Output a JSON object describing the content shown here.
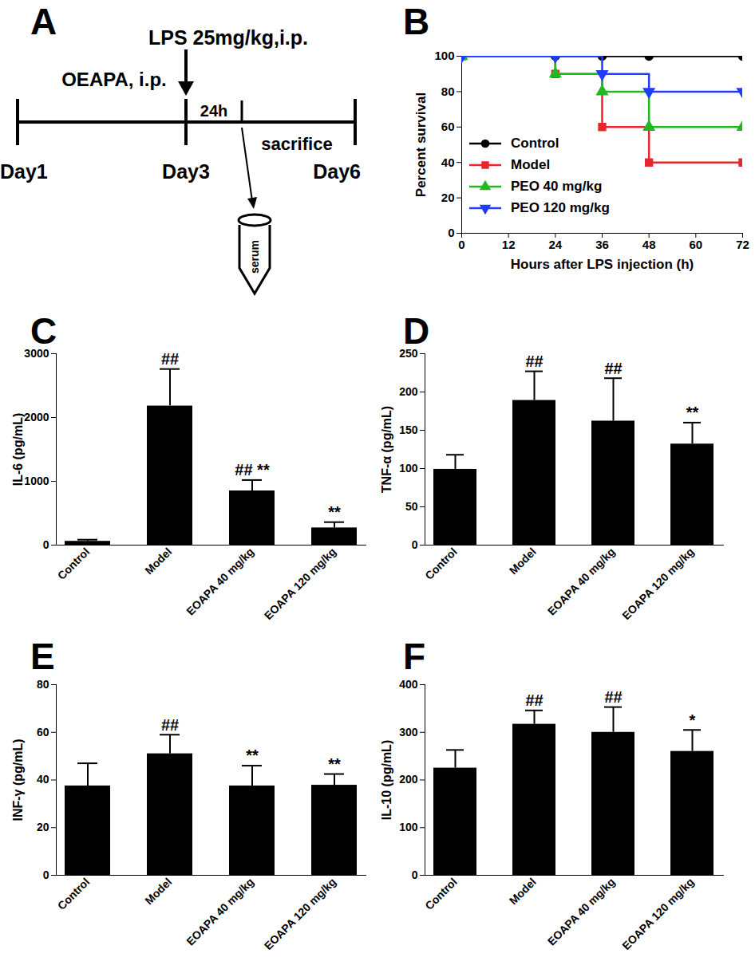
{
  "diagram": {
    "panel": "A",
    "injection": "LPS 25mg/kg,i.p.",
    "pretreatment": "OEAPA, i.p.",
    "interval": "24h",
    "endpoint": "sacrifice",
    "days": [
      "Day1",
      "Day3",
      "Day6"
    ],
    "sample": "serum"
  },
  "chart_data": [
    {
      "panel": "B",
      "type": "line",
      "x_label": "Hours after LPS injection (h)",
      "y_label": "Percent survival",
      "x": [
        0,
        24,
        36,
        48,
        72
      ],
      "xlim": [
        0,
        72
      ],
      "xticks": [
        0,
        12,
        24,
        36,
        48,
        60,
        72
      ],
      "ylim": [
        0,
        100
      ],
      "yticks": [
        0,
        20,
        40,
        60,
        80,
        100
      ],
      "legend": "left",
      "series": [
        {
          "name": "Control",
          "color": "#000000",
          "marker": "circle",
          "values": [
            100,
            100,
            100,
            100,
            100
          ]
        },
        {
          "name": "Model",
          "color": "#e8262b",
          "marker": "square",
          "values": [
            100,
            90,
            60,
            40,
            40
          ]
        },
        {
          "name": "PEO 40 mg/kg",
          "color": "#21b821",
          "marker": "triangle",
          "values": [
            100,
            90,
            80,
            60,
            60
          ]
        },
        {
          "name": "PEO 120 mg/kg",
          "color": "#1f3cff",
          "marker": "triangle-down",
          "values": [
            100,
            100,
            90,
            80,
            80
          ]
        }
      ]
    },
    {
      "panel": "C",
      "type": "bar",
      "y_label": "IL-6 (pg/mL)",
      "color": "#000000",
      "categories": [
        "Control",
        "Model",
        "EOAPA 40 mg/kg",
        "EOAPA 120 mg/kg"
      ],
      "values": [
        60,
        2180,
        850,
        270
      ],
      "errors": [
        25,
        580,
        170,
        90
      ],
      "annotations": [
        null,
        "##",
        "## **",
        "**"
      ],
      "ylim": [
        0,
        3000
      ],
      "yticks": [
        0,
        1000,
        2000,
        3000
      ]
    },
    {
      "panel": "D",
      "type": "bar",
      "y_label": "TNF-α (pg/mL)",
      "color": "#000000",
      "categories": [
        "Control",
        "Model",
        "EOAPA 40 mg/kg",
        "EOAPA 120 mg/kg"
      ],
      "values": [
        99,
        189,
        162,
        132
      ],
      "errors": [
        19,
        38,
        56,
        28
      ],
      "annotations": [
        null,
        "##",
        "##",
        "**"
      ],
      "ylim": [
        0,
        250
      ],
      "yticks": [
        0,
        50,
        100,
        150,
        200,
        250
      ]
    },
    {
      "panel": "E",
      "type": "bar",
      "y_label": "INF-γ (pg/mL)",
      "color": "#000000",
      "categories": [
        "Control",
        "Model",
        "EOAPA 40 mg/kg",
        "EOAPA 120 mg/kg"
      ],
      "values": [
        37.5,
        51,
        37.5,
        37.8
      ],
      "errors": [
        9.5,
        8,
        8.5,
        4.7
      ],
      "annotations": [
        null,
        "##",
        "**",
        "**"
      ],
      "ylim": [
        0,
        80
      ],
      "yticks": [
        0,
        20,
        40,
        60,
        80
      ]
    },
    {
      "panel": "F",
      "type": "bar",
      "y_label": "IL-10 (pg/mL)",
      "color": "#000000",
      "categories": [
        "Control",
        "Model",
        "EOAPA 40 mg/kg",
        "EOAPA 120 mg/kg"
      ],
      "values": [
        225,
        317,
        300,
        260
      ],
      "errors": [
        38,
        29,
        53,
        45
      ],
      "annotations": [
        null,
        "##",
        "##",
        "*"
      ],
      "ylim": [
        0,
        400
      ],
      "yticks": [
        0,
        100,
        200,
        300,
        400
      ]
    }
  ]
}
